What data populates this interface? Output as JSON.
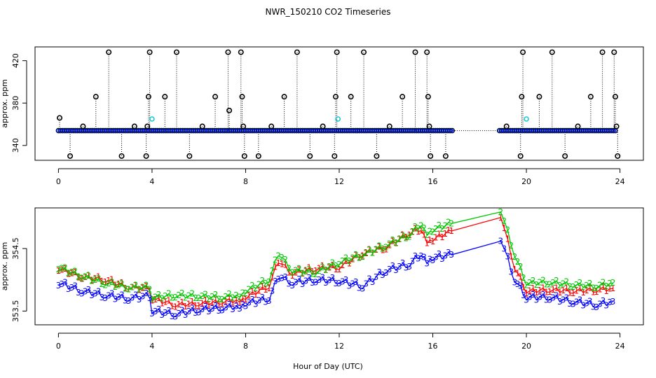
{
  "figure": {
    "title": "NWR_150210  CO2 Timeseries",
    "xlabel": "Hour of Day (UTC)"
  },
  "colors": {
    "black": "#000000",
    "cyan": "#00c8d8",
    "blue": "#0000ff",
    "green": "#00c800",
    "red": "#ff0000"
  },
  "chart_data": [
    {
      "type": "scatter",
      "name": "top",
      "ylabel": "approx. ppm",
      "xlim": [
        -1,
        25
      ],
      "ylim": [
        326,
        433
      ],
      "xticks": [
        "0",
        "4",
        "8",
        "12",
        "16",
        "20",
        "24"
      ],
      "yticks": [
        "340",
        "380",
        "420"
      ],
      "baseline": 354,
      "gap": [
        16.85,
        18.85
      ],
      "black_markers": [
        {
          "x": 0.05,
          "y": 366
        },
        {
          "x": 0.5,
          "y": 330
        },
        {
          "x": 1.05,
          "y": 358
        },
        {
          "x": 1.6,
          "y": 386
        },
        {
          "x": 2.15,
          "y": 428
        },
        {
          "x": 2.7,
          "y": 330
        },
        {
          "x": 3.25,
          "y": 358
        },
        {
          "x": 3.75,
          "y": 330
        },
        {
          "x": 3.8,
          "y": 358
        },
        {
          "x": 3.85,
          "y": 386
        },
        {
          "x": 3.9,
          "y": 428
        },
        {
          "x": 4.55,
          "y": 386
        },
        {
          "x": 5.05,
          "y": 428
        },
        {
          "x": 5.6,
          "y": 330
        },
        {
          "x": 6.15,
          "y": 358
        },
        {
          "x": 6.7,
          "y": 386
        },
        {
          "x": 7.25,
          "y": 428
        },
        {
          "x": 7.3,
          "y": 373
        },
        {
          "x": 7.8,
          "y": 428
        },
        {
          "x": 7.85,
          "y": 386
        },
        {
          "x": 7.9,
          "y": 358
        },
        {
          "x": 7.95,
          "y": 330
        },
        {
          "x": 8.55,
          "y": 330
        },
        {
          "x": 9.1,
          "y": 358
        },
        {
          "x": 9.65,
          "y": 386
        },
        {
          "x": 10.2,
          "y": 428
        },
        {
          "x": 10.75,
          "y": 330
        },
        {
          "x": 11.3,
          "y": 358
        },
        {
          "x": 11.8,
          "y": 330
        },
        {
          "x": 11.85,
          "y": 386
        },
        {
          "x": 11.9,
          "y": 428
        },
        {
          "x": 12.5,
          "y": 386
        },
        {
          "x": 13.05,
          "y": 428
        },
        {
          "x": 13.6,
          "y": 330
        },
        {
          "x": 14.15,
          "y": 358
        },
        {
          "x": 14.7,
          "y": 386
        },
        {
          "x": 15.25,
          "y": 428
        },
        {
          "x": 15.75,
          "y": 428
        },
        {
          "x": 15.8,
          "y": 386
        },
        {
          "x": 15.85,
          "y": 358
        },
        {
          "x": 15.9,
          "y": 330
        },
        {
          "x": 16.55,
          "y": 330
        },
        {
          "x": 19.15,
          "y": 358
        },
        {
          "x": 19.75,
          "y": 330
        },
        {
          "x": 19.8,
          "y": 386
        },
        {
          "x": 19.85,
          "y": 428
        },
        {
          "x": 20.55,
          "y": 386
        },
        {
          "x": 21.1,
          "y": 428
        },
        {
          "x": 21.65,
          "y": 330
        },
        {
          "x": 22.2,
          "y": 358
        },
        {
          "x": 22.75,
          "y": 386
        },
        {
          "x": 23.25,
          "y": 428
        },
        {
          "x": 23.75,
          "y": 428
        },
        {
          "x": 23.8,
          "y": 386
        },
        {
          "x": 23.85,
          "y": 358
        },
        {
          "x": 23.9,
          "y": 330
        }
      ],
      "cyan_markers": [
        {
          "x": 4.0,
          "y": 365
        },
        {
          "x": 11.95,
          "y": 365
        },
        {
          "x": 20.0,
          "y": 365
        }
      ]
    },
    {
      "type": "line",
      "name": "bottom",
      "ylabel": "approx. ppm",
      "xlim": [
        -1,
        25
      ],
      "ylim": [
        353.28,
        355.15
      ],
      "xticks": [
        "0",
        "4",
        "8",
        "12",
        "16",
        "20",
        "24"
      ],
      "yticks": [
        "353.5",
        "354.5"
      ],
      "x": [
        0,
        1,
        2,
        3,
        3.9,
        4,
        5,
        6,
        7,
        7.75,
        8,
        9,
        9.4,
        10,
        11,
        12,
        13,
        14,
        15,
        15.5,
        15.75,
        16,
        16.8,
        18.9,
        19.5,
        20,
        21,
        22,
        23,
        23.7
      ],
      "series": [
        {
          "name": "1",
          "color": "#ff0000",
          "values": [
            354.18,
            354.05,
            354.0,
            353.88,
            353.86,
            353.7,
            353.6,
            353.62,
            353.65,
            353.68,
            353.72,
            353.9,
            354.3,
            354.1,
            354.18,
            354.2,
            354.42,
            354.52,
            354.75,
            354.82,
            354.62,
            354.65,
            354.78,
            355.03,
            354.2,
            353.82,
            353.84,
            353.82,
            353.84,
            353.86
          ]
        },
        {
          "name": "2",
          "color": "#00c800",
          "values": [
            354.2,
            354.06,
            353.95,
            353.88,
            353.88,
            353.72,
            353.75,
            353.74,
            353.72,
            353.76,
            353.82,
            354.0,
            354.42,
            354.15,
            354.12,
            354.28,
            354.4,
            354.55,
            354.72,
            354.9,
            354.75,
            354.8,
            354.9,
            355.12,
            354.4,
            353.95,
            353.96,
            353.92,
            353.9,
            353.95
          ]
        },
        {
          "name": "3",
          "color": "#0000ff",
          "values": [
            353.95,
            353.82,
            353.75,
            353.7,
            353.75,
            353.5,
            353.45,
            353.52,
            353.55,
            353.58,
            353.62,
            353.7,
            354.05,
            353.95,
            354.0,
            353.98,
            353.9,
            354.15,
            354.25,
            354.42,
            354.3,
            354.35,
            354.4,
            354.66,
            354.0,
            353.72,
            353.72,
            353.65,
            353.6,
            353.65
          ]
        }
      ]
    }
  ]
}
